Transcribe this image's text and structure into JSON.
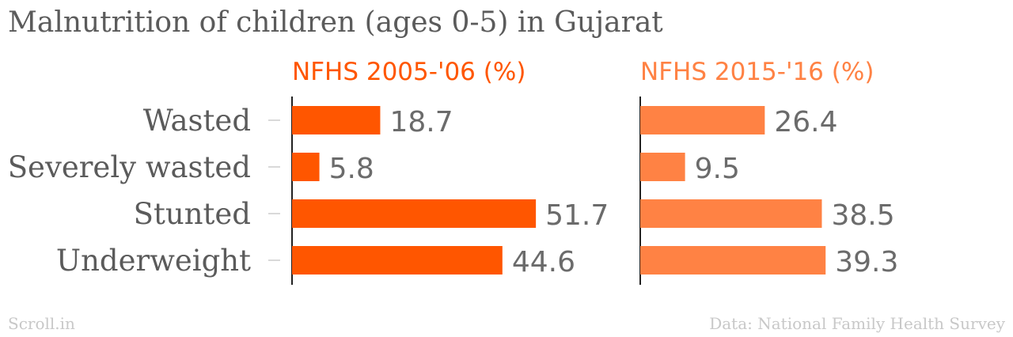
{
  "title": "Malnutrition of children (ages 0-5) in Gujarat",
  "source_brand": "Scroll.in",
  "source_credit": "Data: National Family Health Survey",
  "chart_data": {
    "type": "bar",
    "orientation": "horizontal",
    "title": "Malnutrition of children (ages 0-5) in Gujarat",
    "categories": [
      "Wasted",
      "Severely wasted",
      "Stunted",
      "Underweight"
    ],
    "series": [
      {
        "name": "NFHS 2005-'06 (%)",
        "values": [
          18.7,
          5.8,
          51.7,
          44.6
        ],
        "color": "#ff5600"
      },
      {
        "name": "NFHS 2015-'16 (%)",
        "values": [
          26.4,
          9.5,
          38.5,
          39.3
        ],
        "color": "#ff8244"
      }
    ],
    "xlim": [
      0,
      60
    ],
    "grid": false,
    "layout": "small-multiples"
  },
  "colors": {
    "title": "#5b5b5b",
    "category_label": "#5b5b5b",
    "value_label": "#6b6b6b",
    "footer": "#c8c8c8",
    "axis": "#222222"
  }
}
